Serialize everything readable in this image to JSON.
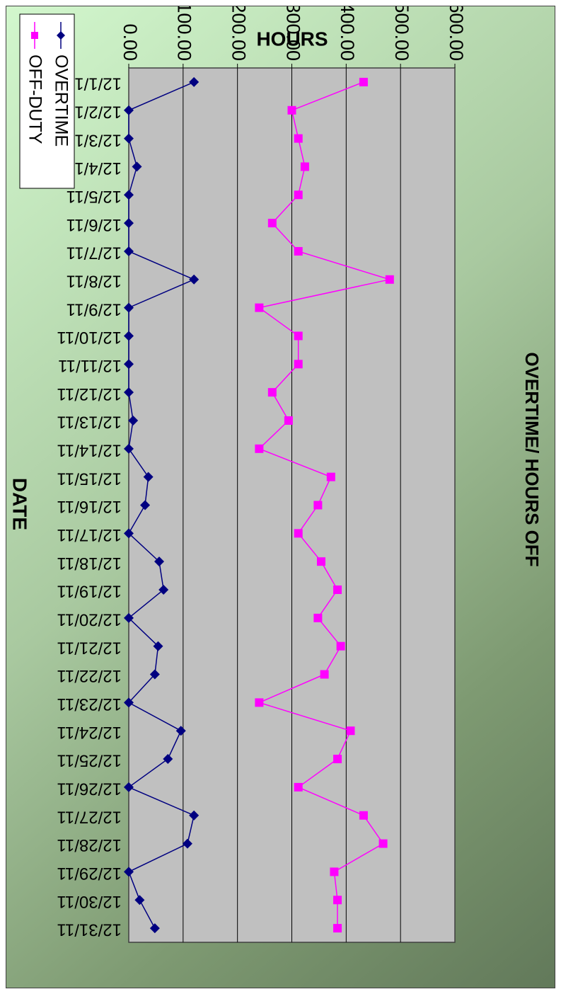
{
  "chart_data": {
    "type": "line",
    "title": "OVERTIME/ HOURS OFF",
    "xlabel": "DATE",
    "ylabel": "HOURS",
    "ylim": [
      0,
      600
    ],
    "yticks": [
      "0.00",
      "100.00",
      "200.00",
      "300.00",
      "400.00",
      "500.00",
      "600.00"
    ],
    "grid": true,
    "legend_position": "top-right",
    "orientation": "rotated 90° clockwise",
    "categories": [
      "12/1/11",
      "12/2/11",
      "12/3/11",
      "12/4/11",
      "12/5/11",
      "12/6/11",
      "12/7/11",
      "12/8/11",
      "12/9/11",
      "12/10/11",
      "12/11/11",
      "12/12/11",
      "12/13/11",
      "12/14/11",
      "12/15/11",
      "12/16/11",
      "12/17/11",
      "12/18/11",
      "12/19/11",
      "12/20/11",
      "12/21/11",
      "12/22/11",
      "12/23/11",
      "12/24/11",
      "12/25/11",
      "12/26/11",
      "12/27/11",
      "12/28/11",
      "12/29/11",
      "12/30/11",
      "12/31/11"
    ],
    "series": [
      {
        "name": "OVERTIME",
        "color": "#000080",
        "marker": "diamond",
        "values": [
          120,
          0,
          0,
          15,
          0,
          0,
          0,
          120,
          0,
          0,
          0,
          0,
          8,
          0,
          36,
          30,
          0,
          56,
          64,
          0,
          54,
          48,
          0,
          96,
          72,
          0,
          120,
          108,
          0,
          20,
          48
        ]
      },
      {
        "name": "OFF-DUTY",
        "color": "#ff00ff",
        "marker": "square",
        "values": [
          432,
          300,
          312,
          324,
          312,
          264,
          312,
          480,
          240,
          312,
          312,
          264,
          294,
          240,
          372,
          348,
          312,
          354,
          384,
          348,
          390,
          360,
          240,
          408,
          384,
          312,
          432,
          468,
          378,
          384,
          384
        ]
      }
    ]
  }
}
